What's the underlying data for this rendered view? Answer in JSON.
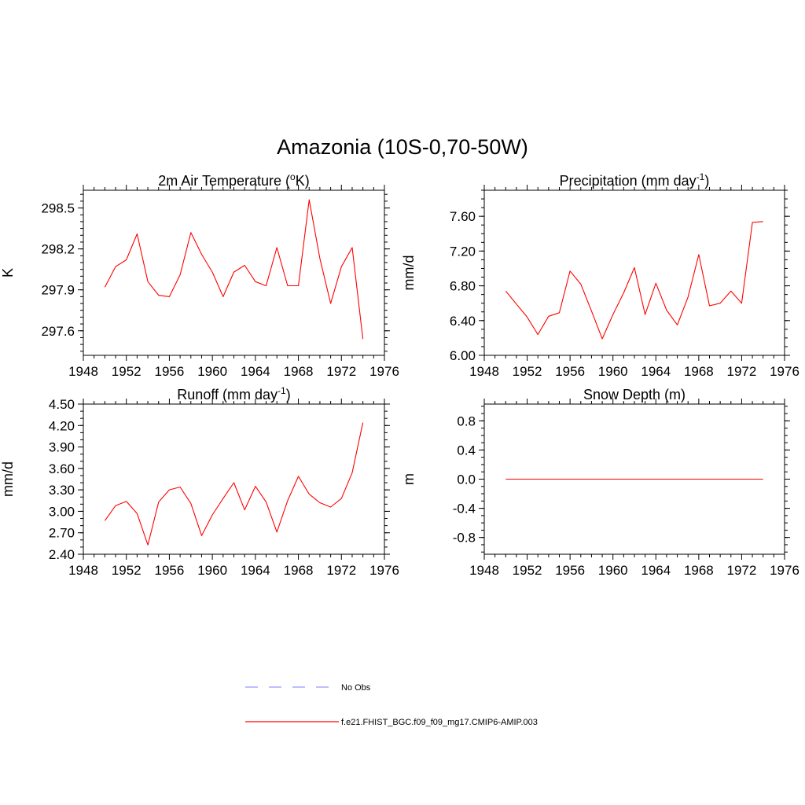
{
  "figure": {
    "title": "Amazonia (10S-0,70-50W)",
    "legend": {
      "entries": [
        {
          "label": "No Obs",
          "color": "#9999ff",
          "style": "dashed"
        },
        {
          "label": "f.e21.FHIST_BGC.f09_f09_mg17.CMIP6-AMIP.003",
          "color": "#ff0000",
          "style": "solid"
        }
      ]
    }
  },
  "chart_data": [
    {
      "type": "line",
      "title": "2m Air Temperature (",
      "title_sup": "o",
      "title_tail": "K)",
      "xlabel": "",
      "ylabel": "K",
      "xlim": [
        1948,
        1976
      ],
      "ylim": [
        297.42,
        298.63
      ],
      "xticks": [
        1948,
        1952,
        1956,
        1960,
        1964,
        1968,
        1972,
        1976
      ],
      "yticks": [
        297.6,
        297.9,
        298.2,
        298.5
      ],
      "yminor_step": 0.05,
      "ytick_decimals": 1,
      "series": [
        {
          "name": "f.e21.FHIST_BGC.f09_f09_mg17.CMIP6-AMIP.003",
          "color": "#ff0000",
          "x": [
            1950,
            1951,
            1952,
            1953,
            1954,
            1955,
            1956,
            1957,
            1958,
            1959,
            1960,
            1961,
            1962,
            1963,
            1964,
            1965,
            1966,
            1967,
            1968,
            1969,
            1970,
            1971,
            1972,
            1973,
            1974
          ],
          "values": [
            297.92,
            298.07,
            298.12,
            298.31,
            297.96,
            297.86,
            297.85,
            298.01,
            298.32,
            298.16,
            298.03,
            297.85,
            298.03,
            298.08,
            297.96,
            297.93,
            298.21,
            297.93,
            297.93,
            298.56,
            298.13,
            297.8,
            298.07,
            298.21,
            297.54
          ]
        }
      ]
    },
    {
      "type": "line",
      "title": "Precipitation (mm day",
      "title_sup": "-1",
      "title_tail": ")",
      "xlabel": "",
      "ylabel": "mm/d",
      "xlim": [
        1948,
        1976
      ],
      "ylim": [
        6.0,
        7.9
      ],
      "xticks": [
        1948,
        1952,
        1956,
        1960,
        1964,
        1968,
        1972,
        1976
      ],
      "yticks": [
        6.0,
        6.4,
        6.8,
        7.2,
        7.6
      ],
      "yminor_step": 0.1,
      "ytick_decimals": 2,
      "series": [
        {
          "name": "f.e21.FHIST_BGC.f09_f09_mg17.CMIP6-AMIP.003",
          "color": "#ff0000",
          "x": [
            1950,
            1951,
            1952,
            1953,
            1954,
            1955,
            1956,
            1957,
            1958,
            1959,
            1960,
            1961,
            1962,
            1963,
            1964,
            1965,
            1966,
            1967,
            1968,
            1969,
            1970,
            1971,
            1972,
            1973,
            1974
          ],
          "values": [
            6.74,
            6.59,
            6.44,
            6.24,
            6.45,
            6.49,
            6.97,
            6.82,
            6.51,
            6.19,
            6.47,
            6.72,
            7.01,
            6.47,
            6.83,
            6.52,
            6.35,
            6.67,
            7.16,
            6.57,
            6.6,
            6.74,
            6.6,
            7.53,
            7.54
          ]
        }
      ]
    },
    {
      "type": "line",
      "title": "Runoff (mm day",
      "title_sup": "-1",
      "title_tail": ")",
      "xlabel": "",
      "ylabel": "mm/d",
      "xlim": [
        1948,
        1976
      ],
      "ylim": [
        2.4,
        4.5
      ],
      "xticks": [
        1948,
        1952,
        1956,
        1960,
        1964,
        1968,
        1972,
        1976
      ],
      "yticks": [
        2.4,
        2.7,
        3.0,
        3.3,
        3.6,
        3.9,
        4.2,
        4.5
      ],
      "yminor_step": 0.1,
      "ytick_decimals": 2,
      "series": [
        {
          "name": "f.e21.FHIST_BGC.f09_f09_mg17.CMIP6-AMIP.003",
          "color": "#ff0000",
          "x": [
            1950,
            1951,
            1952,
            1953,
            1954,
            1955,
            1956,
            1957,
            1958,
            1959,
            1960,
            1961,
            1962,
            1963,
            1964,
            1965,
            1966,
            1967,
            1968,
            1969,
            1970,
            1971,
            1972,
            1973,
            1974
          ],
          "values": [
            2.87,
            3.08,
            3.14,
            2.97,
            2.53,
            3.13,
            3.3,
            3.34,
            3.11,
            2.66,
            2.95,
            3.18,
            3.4,
            3.02,
            3.35,
            3.13,
            2.71,
            3.15,
            3.49,
            3.24,
            3.12,
            3.06,
            3.18,
            3.54,
            4.24
          ]
        }
      ]
    },
    {
      "type": "line",
      "title": "Snow Depth (m)",
      "title_sup": "",
      "title_tail": "",
      "xlabel": "",
      "ylabel": "m",
      "xlim": [
        1948,
        1976
      ],
      "ylim": [
        -1.03,
        1.03
      ],
      "xticks": [
        1948,
        1952,
        1956,
        1960,
        1964,
        1968,
        1972,
        1976
      ],
      "yticks": [
        -0.8,
        -0.4,
        0.0,
        0.4,
        0.8
      ],
      "yminor_step": 0.1,
      "ytick_decimals": 1,
      "series": [
        {
          "name": "f.e21.FHIST_BGC.f09_f09_mg17.CMIP6-AMIP.003",
          "color": "#ff0000",
          "x": [
            1950,
            1951,
            1952,
            1953,
            1954,
            1955,
            1956,
            1957,
            1958,
            1959,
            1960,
            1961,
            1962,
            1963,
            1964,
            1965,
            1966,
            1967,
            1968,
            1969,
            1970,
            1971,
            1972,
            1973,
            1974
          ],
          "values": [
            0,
            0,
            0,
            0,
            0,
            0,
            0,
            0,
            0,
            0,
            0,
            0,
            0,
            0,
            0,
            0,
            0,
            0,
            0,
            0,
            0,
            0,
            0,
            0,
            0
          ]
        }
      ]
    }
  ]
}
